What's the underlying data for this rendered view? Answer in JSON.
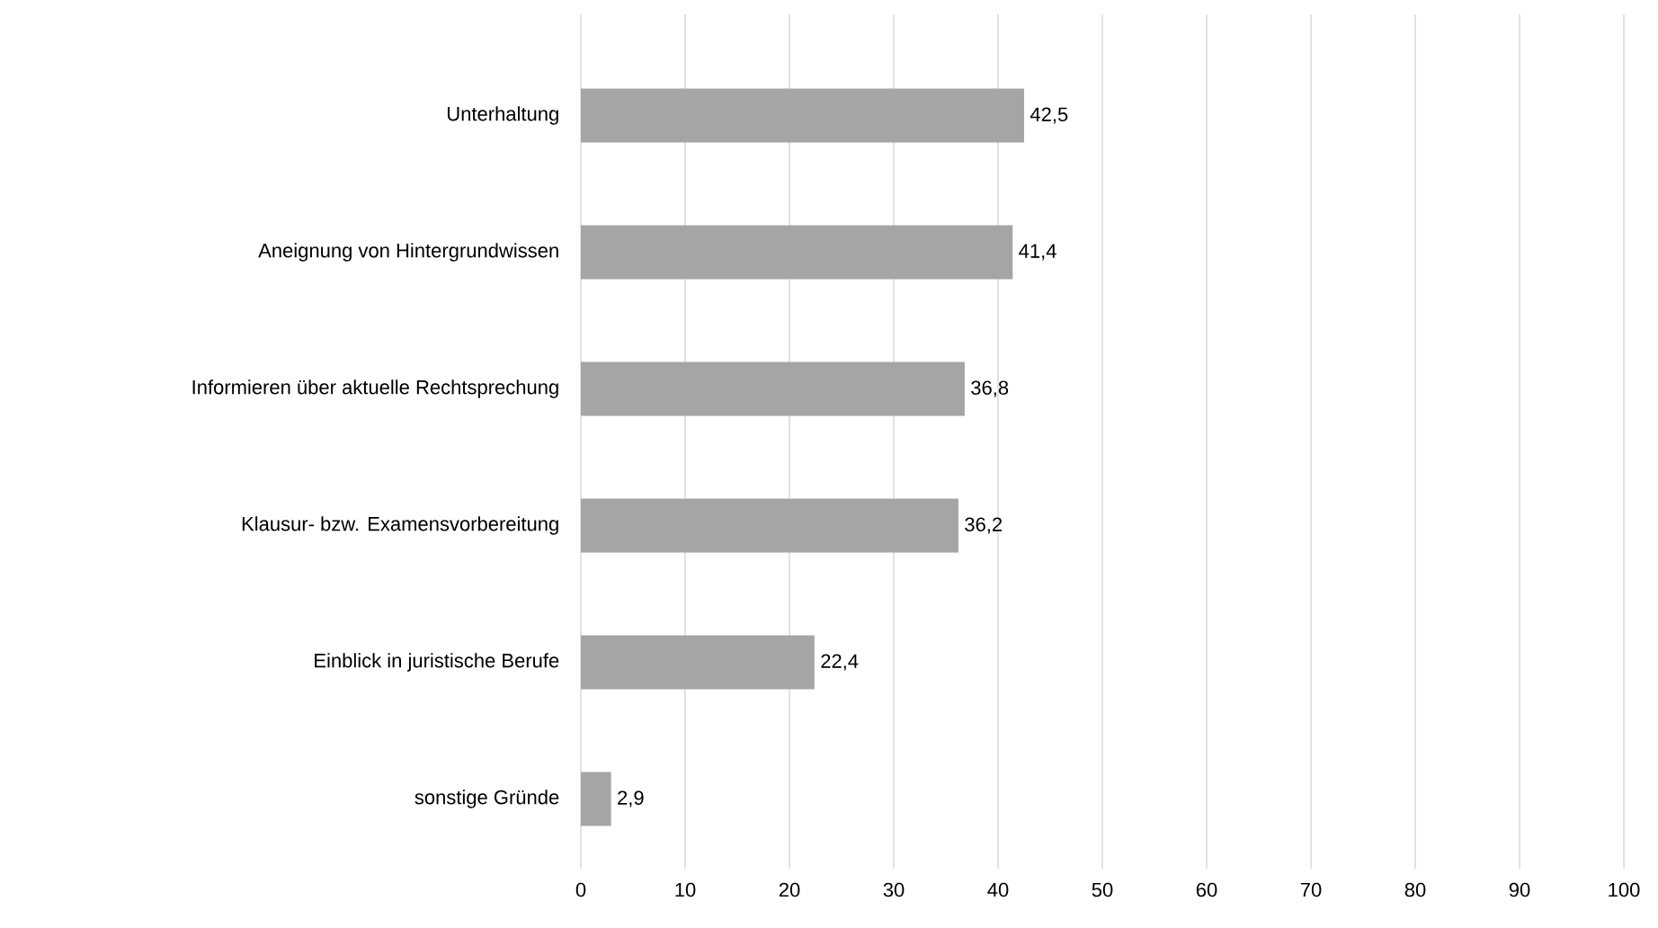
{
  "chart_data": {
    "type": "bar",
    "orientation": "horizontal",
    "categories": [
      "Unterhaltung",
      "Aneignung von Hintergrundwissen",
      "Informieren über aktuelle Rechtsprechung",
      "Klausur- bzw. Examensvorbereitung",
      "Einblick in juristische Berufe",
      "sonstige Gründe"
    ],
    "values": [
      42.5,
      41.4,
      36.8,
      36.2,
      22.4,
      2.9
    ],
    "value_labels": [
      "42,5",
      "41,4",
      "36,8",
      "36,2",
      "22,4",
      "2,9"
    ],
    "color": "#a5a5a5",
    "xlim": [
      0,
      100
    ],
    "xticks": [
      0,
      10,
      20,
      30,
      40,
      50,
      60,
      70,
      80,
      90,
      100
    ],
    "grid": "x"
  }
}
